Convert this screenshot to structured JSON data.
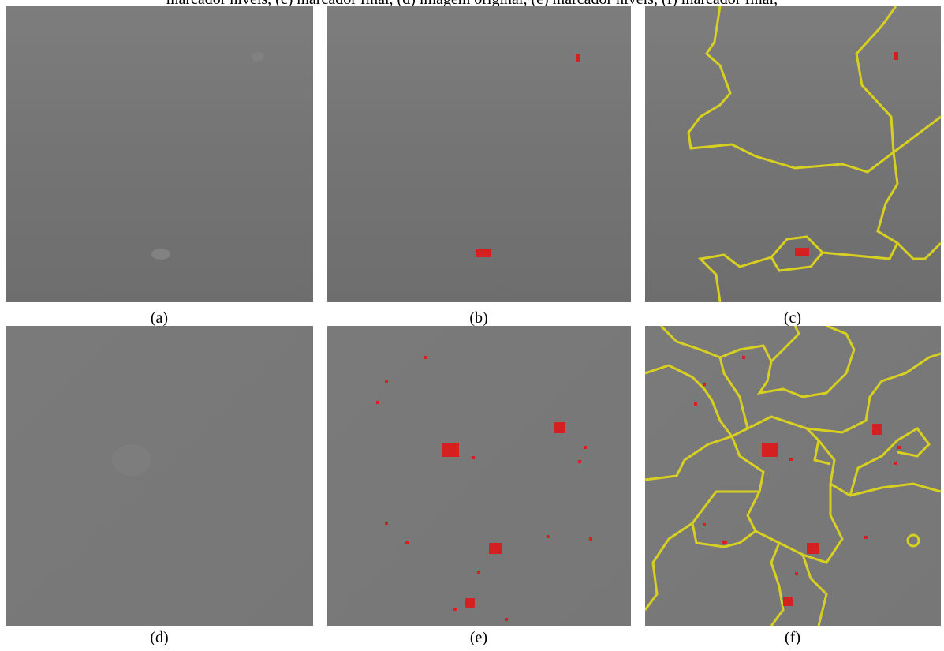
{
  "header_text": "marcador níveis, (c) marcador final, (d) imagem original, (e) marcador níveis, (f) marcador final,",
  "panels": [
    {
      "label": "(a)"
    },
    {
      "label": "(b)"
    },
    {
      "label": "(c)"
    },
    {
      "label": "(d)"
    },
    {
      "label": "(e)"
    },
    {
      "label": "(f)"
    }
  ]
}
